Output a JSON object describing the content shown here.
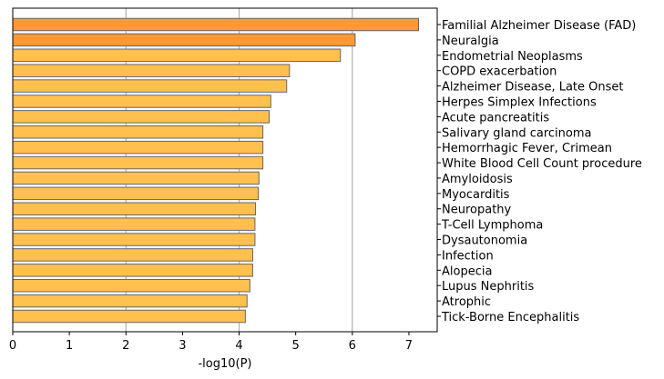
{
  "chart_data": {
    "type": "bar",
    "orientation": "horizontal",
    "xlabel": "-log10(P)",
    "ylabel": "",
    "xlim": [
      0,
      7.5
    ],
    "xticks": [
      "0",
      "1",
      "2",
      "3",
      "4",
      "5",
      "6",
      "7"
    ],
    "grid": "vertical gridlines at 2, 4, 6",
    "categories": [
      "Familial Alzheimer Disease (FAD)",
      "Neuralgia",
      "Endometrial Neoplasms",
      "COPD exacerbation",
      "Alzheimer Disease, Late Onset",
      "Herpes Simplex Infections",
      "Acute pancreatitis",
      "Salivary gland carcinoma",
      "Hemorrhagic Fever, Crimean",
      "White Blood Cell Count procedure",
      "Amyloidosis",
      "Myocarditis",
      "Neuropathy",
      "T-Cell Lymphoma",
      "Dysautonomia",
      "Infection",
      "Alopecia",
      "Lupus Nephritis",
      "Atrophic",
      "Tick-Borne Encephalitis"
    ],
    "values": [
      7.17,
      6.05,
      5.79,
      4.89,
      4.84,
      4.56,
      4.53,
      4.42,
      4.42,
      4.42,
      4.35,
      4.34,
      4.29,
      4.28,
      4.28,
      4.24,
      4.24,
      4.19,
      4.14,
      4.11
    ],
    "bar_colors": [
      "#FF9933",
      "#FF9933",
      "#FFC04D",
      "#FFC04D",
      "#FFC04D",
      "#FFC04D",
      "#FFC04D",
      "#FFC04D",
      "#FFC04D",
      "#FFC04D",
      "#FFC04D",
      "#FFC04D",
      "#FFC04D",
      "#FFC04D",
      "#FFC04D",
      "#FFC04D",
      "#FFC04D",
      "#FFC04D",
      "#FFC04D",
      "#FFC04D"
    ],
    "bar_edge_color": "#666666",
    "grid_color": "#b0b0b0"
  }
}
